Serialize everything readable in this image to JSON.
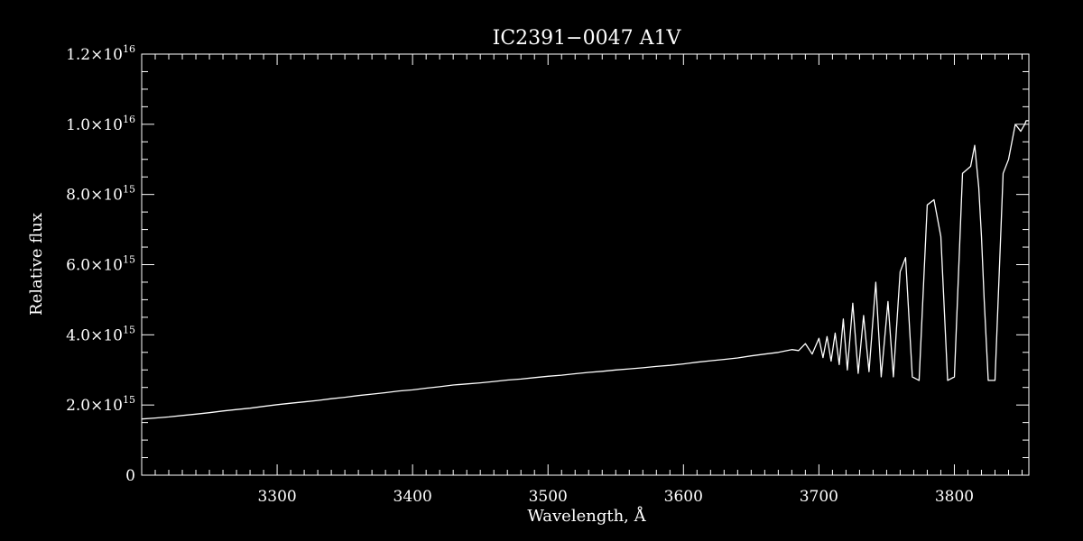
{
  "chart_data": {
    "type": "line",
    "title": "IC2391−0047  A1V",
    "xlabel": "Wavelength, Å",
    "ylabel": "Relative flux",
    "xlim": [
      3200,
      3855
    ],
    "ylim": [
      0,
      1.2e+16
    ],
    "x_ticks": [
      3300,
      3400,
      3500,
      3600,
      3700,
      3800
    ],
    "x_tick_labels": [
      "3300",
      "3400",
      "3500",
      "3600",
      "3700",
      "3800"
    ],
    "y_ticks": [
      0,
      2000000000000000.0,
      4000000000000000.0,
      6000000000000000.0,
      8000000000000000.0,
      1e+16,
      1.2e+16
    ],
    "y_tick_labels": [
      {
        "mantissa": "0",
        "exp": ""
      },
      {
        "mantissa": "2.0×10",
        "exp": "15"
      },
      {
        "mantissa": "4.0×10",
        "exp": "15"
      },
      {
        "mantissa": "6.0×10",
        "exp": "15"
      },
      {
        "mantissa": "8.0×10",
        "exp": "15"
      },
      {
        "mantissa": "1.0×10",
        "exp": "16"
      },
      {
        "mantissa": "1.2×10",
        "exp": "16"
      }
    ],
    "series": [
      {
        "color": "#ffffff",
        "x": [
          3200,
          3210,
          3220,
          3230,
          3240,
          3250,
          3260,
          3270,
          3280,
          3290,
          3300,
          3310,
          3320,
          3330,
          3340,
          3350,
          3360,
          3370,
          3380,
          3390,
          3400,
          3410,
          3420,
          3430,
          3440,
          3450,
          3460,
          3470,
          3480,
          3490,
          3500,
          3510,
          3520,
          3530,
          3540,
          3550,
          3560,
          3570,
          3580,
          3590,
          3600,
          3610,
          3620,
          3630,
          3640,
          3650,
          3660,
          3670,
          3680,
          3685,
          3690,
          3695,
          3700,
          3703,
          3706,
          3709,
          3712,
          3715,
          3718,
          3721,
          3725,
          3729,
          3733,
          3737,
          3742,
          3746,
          3751,
          3755,
          3760,
          3764,
          3769,
          3774,
          3780,
          3785,
          3790,
          3795,
          3800,
          3806,
          3812,
          3815,
          3818,
          3820,
          3822,
          3825,
          3830,
          3836,
          3840,
          3845,
          3849,
          3852,
          3853,
          3855
        ],
        "y": [
          1600000000000000.0,
          1630000000000000.0,
          1660000000000000.0,
          1700000000000000.0,
          1740000000000000.0,
          1780000000000000.0,
          1830000000000000.0,
          1870000000000000.0,
          1910000000000000.0,
          1960000000000000.0,
          2010000000000000.0,
          2050000000000000.0,
          2090000000000000.0,
          2130000000000000.0,
          2180000000000000.0,
          2220000000000000.0,
          2270000000000000.0,
          2310000000000000.0,
          2350000000000000.0,
          2400000000000000.0,
          2430000000000000.0,
          2480000000000000.0,
          2520000000000000.0,
          2570000000000000.0,
          2600000000000000.0,
          2630000000000000.0,
          2670000000000000.0,
          2710000000000000.0,
          2740000000000000.0,
          2780000000000000.0,
          2820000000000000.0,
          2850000000000000.0,
          2890000000000000.0,
          2930000000000000.0,
          2960000000000000.0,
          3000000000000000.0,
          3030000000000000.0,
          3060000000000000.0,
          3100000000000000.0,
          3130000000000000.0,
          3170000000000000.0,
          3220000000000000.0,
          3260000000000000.0,
          3300000000000000.0,
          3340000000000000.0,
          3400000000000000.0,
          3450000000000000.0,
          3500000000000000.0,
          3580000000000000.0,
          3550000000000000.0,
          3750000000000000.0,
          3450000000000000.0,
          3900000000000000.0,
          3350000000000000.0,
          3950000000000000.0,
          3250000000000000.0,
          4050000000000000.0,
          3150000000000000.0,
          4450000000000000.0,
          3000000000000000.0,
          4900000000000000.0,
          2900000000000000.0,
          4550000000000000.0,
          2950000000000000.0,
          5500000000000000.0,
          2800000000000000.0,
          4950000000000000.0,
          2800000000000000.0,
          5800000000000000.0,
          6200000000000000.0,
          2800000000000000.0,
          2700000000000000.0,
          7700000000000000.0,
          7850000000000000.0,
          6800000000000000.0,
          2700000000000000.0,
          2800000000000000.0,
          8600000000000000.0,
          8800000000000000.0,
          9400000000000000.0,
          8200000000000000.0,
          6800000000000000.0,
          5000000000000000.0,
          2700000000000000.0,
          2700000000000000.0,
          8600000000000000.0,
          9000000000000000.0,
          1e+16,
          9800000000000000.0,
          1e+16,
          1.01e+16,
          1.01e+16
        ]
      }
    ]
  }
}
